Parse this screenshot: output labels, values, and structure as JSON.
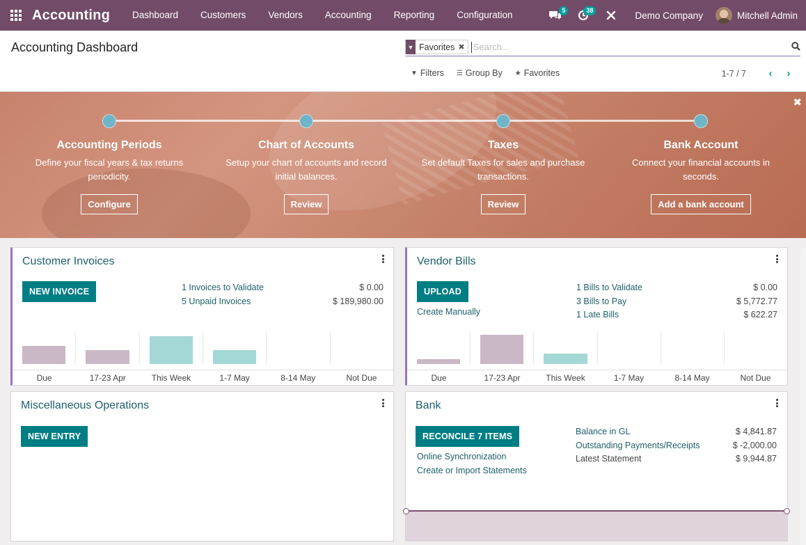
{
  "navbar": {
    "app_name": "Accounting",
    "menu": [
      "Dashboard",
      "Customers",
      "Vendors",
      "Accounting",
      "Reporting",
      "Configuration"
    ],
    "messages_count": "5",
    "activities_count": "38",
    "company": "Demo Company",
    "user": "Mitchell Admin"
  },
  "control_panel": {
    "title": "Accounting Dashboard",
    "facet_label": "Favorites",
    "search_placeholder": "Search...",
    "filters_label": "Filters",
    "groupby_label": "Group By",
    "favorites_label": "Favorites",
    "pager_value": "1-7 / 7"
  },
  "onboarding": {
    "steps": [
      {
        "title": "Accounting Periods",
        "desc": "Define your fiscal years & tax returns periodicity.",
        "button": "Configure"
      },
      {
        "title": "Chart of Accounts",
        "desc": "Setup your chart of accounts and record initial balances.",
        "button": "Review"
      },
      {
        "title": "Taxes",
        "desc": "Set default Taxes for sales and purchase transactions.",
        "button": "Review"
      },
      {
        "title": "Bank Account",
        "desc": "Connect your financial accounts in seconds.",
        "button": "Add a bank account"
      }
    ],
    "close_glyph": "✖"
  },
  "customer_invoices": {
    "title": "Customer Invoices",
    "button": "NEW INVOICE",
    "stats": [
      {
        "label": "1 Invoices to Validate",
        "value": "$ 0.00"
      },
      {
        "label": "5 Unpaid Invoices",
        "value": "$ 189,980.00"
      }
    ],
    "chart_labels": [
      "Due",
      "17-23 Apr",
      "This Week",
      "1-7 May",
      "8-14 May",
      "Not Due"
    ]
  },
  "vendor_bills": {
    "title": "Vendor Bills",
    "button": "UPLOAD",
    "create_manually": "Create Manually",
    "stats": [
      {
        "label": "1 Bills to Validate",
        "value": "$ 0.00"
      },
      {
        "label": "3 Bills to Pay",
        "value": "$ 5,772.77"
      },
      {
        "label": "1 Late Bills",
        "value": "$ 622.27"
      }
    ],
    "chart_labels": [
      "Due",
      "17-23 Apr",
      "This Week",
      "1-7 May",
      "8-14 May",
      "Not Due"
    ]
  },
  "misc_operations": {
    "title": "Miscellaneous Operations",
    "button": "NEW ENTRY"
  },
  "bank": {
    "title": "Bank",
    "button": "RECONCILE 7 ITEMS",
    "links": [
      "Online Synchronization",
      "Create or Import Statements"
    ],
    "stats": [
      {
        "label": "Balance in GL",
        "value": "$ 4,841.87"
      },
      {
        "label": "Outstanding Payments/Receipts",
        "value": "$ -2,000.00"
      },
      {
        "label": "Latest Statement",
        "value": "$ 9,944.87"
      }
    ]
  },
  "colors": {
    "brand": "#714b67",
    "primary_button": "#017e84",
    "past_bar": "#cbb8c6",
    "future_bar": "#a4d8d6"
  },
  "chart_data": [
    {
      "type": "bar",
      "categories": [
        "Due",
        "17-23 Apr",
        "This Week",
        "1-7 May",
        "8-14 May",
        "Not Due"
      ],
      "values": [
        0.6,
        0.45,
        0.9,
        0.45,
        0,
        0
      ],
      "bar_kind": [
        "past",
        "past",
        "future",
        "future",
        "future",
        "future"
      ]
    },
    {
      "type": "bar",
      "categories": [
        "Due",
        "17-23 Apr",
        "This Week",
        "1-7 May",
        "8-14 May",
        "Not Due"
      ],
      "values": [
        0.15,
        0.95,
        0.35,
        0,
        0,
        0
      ],
      "bar_kind": [
        "past",
        "past",
        "future",
        "future",
        "future",
        "future"
      ]
    }
  ]
}
